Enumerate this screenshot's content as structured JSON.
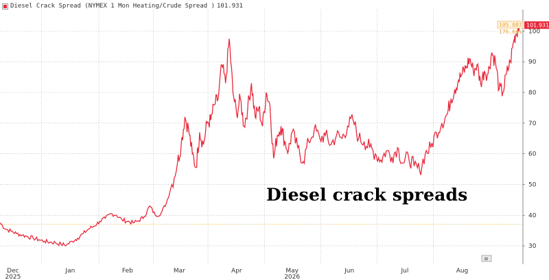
{
  "legend": {
    "label": "Diesel Crack Spread (NYMEX 1 Mon Heating/Crude Spread )",
    "last_value": "101.931"
  },
  "overlay_title": "Diesel crack spreads",
  "annotations": {
    "high_label": "105.087",
    "pct_label": "176.66%",
    "last_label": "101.931",
    "corner_icon": "≡"
  },
  "colors": {
    "series": "#e8283a",
    "reference_line": "#e6b84c",
    "annotation": "#e6a23c",
    "grid": "#b8b8b8"
  },
  "chart_data": {
    "type": "line",
    "title": "Diesel Crack Spread (NYMEX 1 Mon Heating/Crude Spread )",
    "xlabel": "",
    "ylabel": "",
    "x_range": [
      "2025-11-24",
      "2026-09-01"
    ],
    "ylim": [
      24,
      107
    ],
    "y_ticks": [
      30,
      40,
      50,
      60,
      70,
      80,
      90,
      100
    ],
    "x_ticks": [
      {
        "date": "2025-12-01",
        "label": "Dec",
        "year": "2025"
      },
      {
        "date": "2026-01-01",
        "label": "Jan",
        "year": ""
      },
      {
        "date": "2026-02-01",
        "label": "Feb",
        "year": ""
      },
      {
        "date": "2026-03-01",
        "label": "Mar",
        "year": ""
      },
      {
        "date": "2026-04-01",
        "label": "Apr",
        "year": ""
      },
      {
        "date": "2026-05-01",
        "label": "May",
        "year": "2026"
      },
      {
        "date": "2026-06-01",
        "label": "Jun",
        "year": ""
      },
      {
        "date": "2026-07-01",
        "label": "Jul",
        "year": ""
      },
      {
        "date": "2026-08-01",
        "label": "Aug",
        "year": ""
      }
    ],
    "grid": true,
    "legend_position": "top-left",
    "reference_line_y": 37,
    "series": [
      {
        "name": "Diesel Crack Spread (NYMEX 1 Mon Heating/Crude Spread )",
        "points": [
          [
            "2025-11-24",
            37.5
          ],
          [
            "2025-11-27",
            35.5
          ],
          [
            "2025-11-30",
            34.8
          ],
          [
            "2025-12-03",
            34.0
          ],
          [
            "2025-12-06",
            33.5
          ],
          [
            "2025-12-09",
            33.0
          ],
          [
            "2025-12-12",
            32.5
          ],
          [
            "2025-12-15",
            32.0
          ],
          [
            "2025-12-18",
            31.5
          ],
          [
            "2025-12-21",
            31.2
          ],
          [
            "2025-12-24",
            31.0
          ],
          [
            "2025-12-27",
            30.5
          ],
          [
            "2025-12-30",
            30.3
          ],
          [
            "2026-01-02",
            31.5
          ],
          [
            "2026-01-05",
            32.5
          ],
          [
            "2026-01-08",
            34.0
          ],
          [
            "2026-01-11",
            35.5
          ],
          [
            "2026-01-14",
            36.5
          ],
          [
            "2026-01-17",
            38.0
          ],
          [
            "2026-01-20",
            39.0
          ],
          [
            "2026-01-23",
            40.5
          ],
          [
            "2026-01-26",
            40.0
          ],
          [
            "2026-01-29",
            38.5
          ],
          [
            "2026-02-01",
            38.0
          ],
          [
            "2026-02-04",
            37.5
          ],
          [
            "2026-02-07",
            38.2
          ],
          [
            "2026-02-10",
            39.5
          ],
          [
            "2026-02-13",
            43.0
          ],
          [
            "2026-02-16",
            40.0
          ],
          [
            "2026-02-19",
            40.5
          ],
          [
            "2026-02-22",
            44.0
          ],
          [
            "2026-02-25",
            50.0
          ],
          [
            "2026-02-28",
            57.0
          ],
          [
            "2026-03-02",
            63.0
          ],
          [
            "2026-03-04",
            72.0
          ],
          [
            "2026-03-06",
            68.0
          ],
          [
            "2026-03-08",
            60.0
          ],
          [
            "2026-03-10",
            55.5
          ],
          [
            "2026-03-12",
            67.0
          ],
          [
            "2026-03-14",
            63.0
          ],
          [
            "2026-03-16",
            70.0
          ],
          [
            "2026-03-18",
            71.0
          ],
          [
            "2026-03-20",
            76.0
          ],
          [
            "2026-03-22",
            78.0
          ],
          [
            "2026-03-24",
            89.0
          ],
          [
            "2026-03-26",
            83.0
          ],
          [
            "2026-03-28",
            97.5
          ],
          [
            "2026-03-30",
            80.0
          ],
          [
            "2026-04-01",
            73.0
          ],
          [
            "2026-04-03",
            78.0
          ],
          [
            "2026-04-05",
            69.0
          ],
          [
            "2026-04-07",
            75.0
          ],
          [
            "2026-04-09",
            83.0
          ],
          [
            "2026-04-11",
            72.0
          ],
          [
            "2026-04-13",
            75.0
          ],
          [
            "2026-04-15",
            69.0
          ],
          [
            "2026-04-17",
            80.0
          ],
          [
            "2026-04-19",
            76.0
          ],
          [
            "2026-04-21",
            58.5
          ],
          [
            "2026-04-23",
            66.0
          ],
          [
            "2026-04-25",
            69.0
          ],
          [
            "2026-04-27",
            64.0
          ],
          [
            "2026-04-29",
            61.0
          ],
          [
            "2026-05-01",
            67.0
          ],
          [
            "2026-05-04",
            62.0
          ],
          [
            "2026-05-07",
            57.5
          ],
          [
            "2026-05-10",
            64.0
          ],
          [
            "2026-05-13",
            68.0
          ],
          [
            "2026-05-16",
            65.0
          ],
          [
            "2026-05-19",
            66.0
          ],
          [
            "2026-05-22",
            63.0
          ],
          [
            "2026-05-25",
            66.0
          ],
          [
            "2026-05-28",
            65.0
          ],
          [
            "2026-05-31",
            69.0
          ],
          [
            "2026-06-03",
            71.0
          ],
          [
            "2026-06-06",
            65.0
          ],
          [
            "2026-06-09",
            64.0
          ],
          [
            "2026-06-12",
            62.0
          ],
          [
            "2026-06-15",
            60.0
          ],
          [
            "2026-06-18",
            58.0
          ],
          [
            "2026-06-21",
            61.0
          ],
          [
            "2026-06-24",
            59.0
          ],
          [
            "2026-06-27",
            62.0
          ],
          [
            "2026-06-30",
            57.0
          ],
          [
            "2026-07-03",
            59.0
          ],
          [
            "2026-07-06",
            56.0
          ],
          [
            "2026-07-09",
            54.5
          ],
          [
            "2026-07-12",
            60.0
          ],
          [
            "2026-07-15",
            62.0
          ],
          [
            "2026-07-18",
            67.0
          ],
          [
            "2026-07-21",
            70.0
          ],
          [
            "2026-07-24",
            73.0
          ],
          [
            "2026-07-26",
            78.0
          ],
          [
            "2026-07-28",
            81.0
          ],
          [
            "2026-07-30",
            84.0
          ],
          [
            "2026-08-01",
            86.0
          ],
          [
            "2026-08-03",
            88.0
          ],
          [
            "2026-08-05",
            91.0
          ],
          [
            "2026-08-07",
            87.0
          ],
          [
            "2026-08-09",
            89.0
          ],
          [
            "2026-08-11",
            83.0
          ],
          [
            "2026-08-13",
            87.0
          ],
          [
            "2026-08-15",
            86.0
          ],
          [
            "2026-08-17",
            93.0
          ],
          [
            "2026-08-19",
            90.0
          ],
          [
            "2026-08-21",
            81.0
          ],
          [
            "2026-08-23",
            80.0
          ],
          [
            "2026-08-25",
            86.0
          ],
          [
            "2026-08-27",
            90.0
          ],
          [
            "2026-08-29",
            97.0
          ],
          [
            "2026-08-30",
            99.0
          ],
          [
            "2026-09-01",
            101.931
          ]
        ]
      }
    ]
  }
}
